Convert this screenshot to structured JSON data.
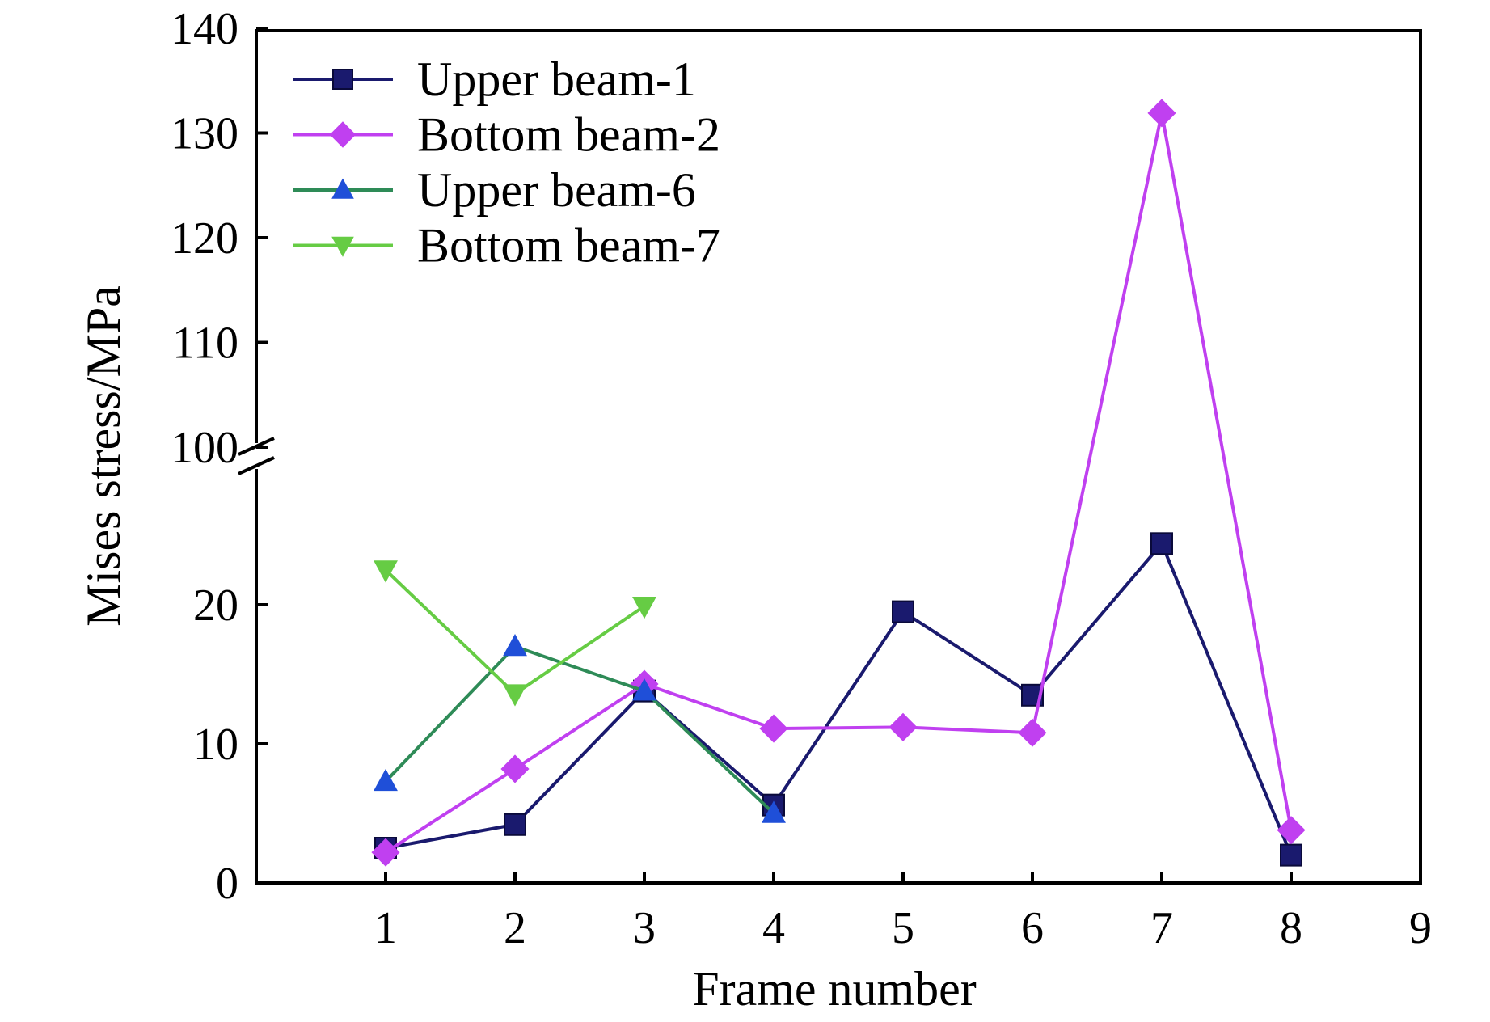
{
  "chart_data": {
    "type": "line",
    "title": "",
    "xlabel": "Frame number",
    "ylabel": "Mises stress/MPa",
    "xlim": [
      0,
      9
    ],
    "x_ticks": [
      1,
      2,
      3,
      4,
      5,
      6,
      7,
      8,
      9
    ],
    "ylim": [
      0,
      140
    ],
    "y_axis_break": [
      25,
      100
    ],
    "y_ticks_lower": [
      0,
      10,
      20
    ],
    "y_ticks_upper": [
      100,
      110,
      120,
      130,
      140
    ],
    "grid": false,
    "legend_position": "top-left",
    "series": [
      {
        "name": "Upper beam-1",
        "color": "#1a1a6e",
        "marker": "square",
        "x": [
          1,
          2,
          3,
          4,
          5,
          6,
          7,
          8
        ],
        "y": [
          2.5,
          4.2,
          13.8,
          5.6,
          19.5,
          13.5,
          24.4,
          2.0
        ]
      },
      {
        "name": "Bottom beam-2",
        "color": "#c040f0",
        "marker": "diamond",
        "x": [
          1,
          2,
          3,
          4,
          5,
          6,
          7,
          8
        ],
        "y": [
          2.2,
          8.2,
          14.3,
          11.1,
          11.2,
          10.8,
          131.9,
          3.8
        ]
      },
      {
        "name": "Upper beam-6",
        "color": "#2e8b57",
        "marker_color": "#1f4fd8",
        "marker": "triangle-up",
        "x": [
          1,
          2,
          3,
          4
        ],
        "y": [
          7.3,
          17.0,
          13.8,
          5.0
        ]
      },
      {
        "name": "Bottom beam-7",
        "color": "#66cc44",
        "marker": "triangle-down",
        "x": [
          1,
          2,
          3
        ],
        "y": [
          22.5,
          13.6,
          19.9
        ]
      }
    ]
  }
}
